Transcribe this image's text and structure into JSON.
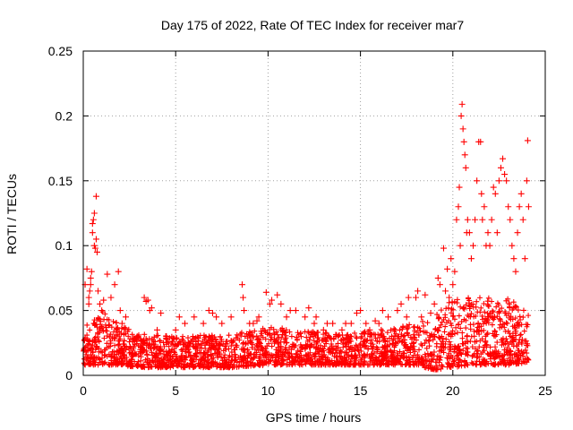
{
  "chart_data": {
    "type": "scatter",
    "title": "Day 175 of 2022, Rate Of TEC Index for receiver mar7",
    "xlabel": "GPS time / hours",
    "ylabel": "ROTI / TECUs",
    "xlim": [
      0,
      25
    ],
    "ylim": [
      0,
      0.25
    ],
    "x_ticks": [
      0,
      5,
      10,
      15,
      20,
      25
    ],
    "x_tick_labels": [
      "0",
      "5",
      "10",
      "15",
      "20",
      "25"
    ],
    "y_ticks": [
      0,
      0.05,
      0.1,
      0.15,
      0.2,
      0.25
    ],
    "y_tick_labels": [
      "0",
      "0.05",
      "0.1",
      "0.15",
      "0.2",
      "0.25"
    ],
    "grid": true,
    "marker": "+",
    "series": [
      {
        "name": "ROTI",
        "color": "#ff0000",
        "x": [
          0.1,
          0.2,
          0.3,
          0.4,
          0.5,
          0.6,
          0.7,
          0.8,
          0.9,
          1.0,
          0.5,
          0.55,
          0.6,
          0.65,
          0.7,
          0.75,
          0.3,
          0.35,
          0.4,
          0.45,
          1.1,
          1.3,
          1.5,
          1.7,
          1.9,
          2.0,
          2.1,
          2.3,
          3.3,
          3.4,
          3.6,
          4.0,
          4.5,
          5.0,
          5.5,
          6.0,
          6.5,
          7.0,
          7.5,
          8.0,
          8.6,
          8.65,
          8.7,
          9.0,
          9.5,
          9.9,
          10.2,
          10.5,
          10.7,
          11.0,
          11.5,
          12.0,
          12.2,
          12.5,
          13.0,
          13.5,
          14.0,
          14.5,
          14.8,
          15.0,
          15.3,
          15.5,
          16.0,
          16.5,
          17.0,
          17.5,
          18.0,
          18.3,
          18.5,
          18.8,
          19.0,
          19.2,
          19.5,
          19.7,
          19.8,
          20.0,
          20.2,
          20.3,
          20.35,
          20.4,
          20.45,
          20.5,
          20.55,
          20.6,
          20.65,
          20.7,
          20.75,
          20.8,
          20.9,
          21.0,
          21.1,
          21.2,
          21.3,
          21.4,
          21.5,
          21.55,
          21.6,
          21.7,
          21.8,
          21.9,
          22.0,
          22.1,
          22.2,
          22.3,
          22.4,
          22.5,
          22.6,
          22.7,
          22.8,
          22.9,
          23.0,
          23.1,
          23.2,
          23.3,
          23.4,
          23.5,
          23.6,
          23.7,
          23.8,
          23.9,
          24.0,
          24.05,
          24.1,
          3.5,
          3.7,
          4.2,
          5.2,
          6.8,
          7.2,
          9.2,
          9.4,
          10.1,
          11.2,
          12.6,
          13.2,
          14.2,
          15.8,
          16.2,
          17.2,
          17.6,
          18.1,
          19.3,
          19.6,
          19.9,
          20.1
        ],
        "y": [
          0.07,
          0.082,
          0.06,
          0.075,
          0.11,
          0.125,
          0.138,
          0.065,
          0.055,
          0.05,
          0.117,
          0.12,
          0.1,
          0.098,
          0.105,
          0.095,
          0.055,
          0.065,
          0.07,
          0.08,
          0.058,
          0.078,
          0.06,
          0.07,
          0.08,
          0.05,
          0.04,
          0.045,
          0.06,
          0.057,
          0.05,
          0.035,
          0.03,
          0.035,
          0.04,
          0.045,
          0.04,
          0.048,
          0.04,
          0.045,
          0.07,
          0.06,
          0.05,
          0.04,
          0.045,
          0.064,
          0.058,
          0.062,
          0.055,
          0.045,
          0.05,
          0.045,
          0.052,
          0.04,
          0.035,
          0.04,
          0.035,
          0.04,
          0.048,
          0.05,
          0.04,
          0.035,
          0.04,
          0.045,
          0.05,
          0.045,
          0.06,
          0.045,
          0.062,
          0.048,
          0.055,
          0.075,
          0.098,
          0.082,
          0.06,
          0.07,
          0.12,
          0.13,
          0.145,
          0.1,
          0.2,
          0.209,
          0.19,
          0.18,
          0.17,
          0.16,
          0.11,
          0.12,
          0.11,
          0.09,
          0.1,
          0.12,
          0.15,
          0.18,
          0.18,
          0.14,
          0.12,
          0.13,
          0.1,
          0.11,
          0.1,
          0.12,
          0.145,
          0.14,
          0.11,
          0.15,
          0.16,
          0.167,
          0.155,
          0.15,
          0.13,
          0.12,
          0.1,
          0.09,
          0.08,
          0.11,
          0.13,
          0.14,
          0.12,
          0.09,
          0.15,
          0.181,
          0.13,
          0.058,
          0.052,
          0.048,
          0.045,
          0.05,
          0.045,
          0.04,
          0.042,
          0.055,
          0.05,
          0.045,
          0.04,
          0.04,
          0.042,
          0.05,
          0.055,
          0.06,
          0.065,
          0.07,
          0.065,
          0.09,
          0.08
        ]
      }
    ],
    "baseline_band": [
      {
        "x": 0.0,
        "lo": 0.008,
        "hi": 0.045
      },
      {
        "x": 1.0,
        "lo": 0.008,
        "hi": 0.05
      },
      {
        "x": 2.0,
        "lo": 0.008,
        "hi": 0.04
      },
      {
        "x": 3.0,
        "lo": 0.006,
        "hi": 0.032
      },
      {
        "x": 5.0,
        "lo": 0.006,
        "hi": 0.03
      },
      {
        "x": 8.0,
        "lo": 0.006,
        "hi": 0.032
      },
      {
        "x": 10.0,
        "lo": 0.008,
        "hi": 0.038
      },
      {
        "x": 12.0,
        "lo": 0.008,
        "hi": 0.034
      },
      {
        "x": 14.0,
        "lo": 0.008,
        "hi": 0.032
      },
      {
        "x": 16.0,
        "lo": 0.008,
        "hi": 0.035
      },
      {
        "x": 18.0,
        "lo": 0.008,
        "hi": 0.04
      },
      {
        "x": 19.0,
        "lo": 0.004,
        "hi": 0.045
      },
      {
        "x": 20.0,
        "lo": 0.006,
        "hi": 0.06
      },
      {
        "x": 21.0,
        "lo": 0.008,
        "hi": 0.06
      },
      {
        "x": 22.0,
        "lo": 0.008,
        "hi": 0.06
      },
      {
        "x": 23.0,
        "lo": 0.008,
        "hi": 0.06
      },
      {
        "x": 24.1,
        "lo": 0.01,
        "hi": 0.05
      }
    ]
  }
}
